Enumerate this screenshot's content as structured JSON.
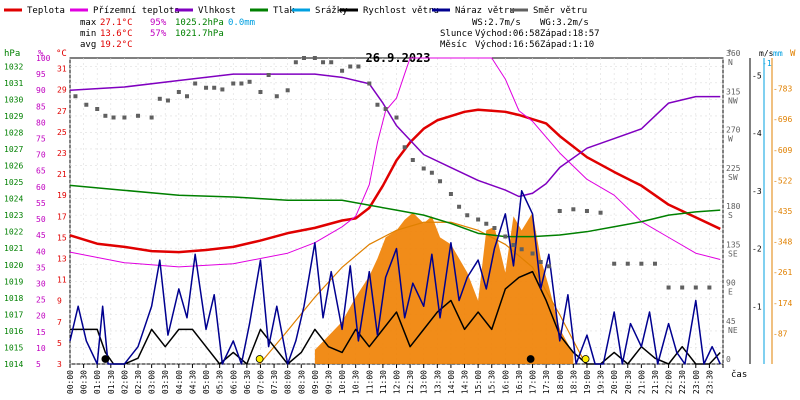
{
  "chart_data": {
    "type": "line",
    "title": "26.9.2023",
    "xlabel": "čas",
    "x_ticks": [
      "00:00",
      "00:30",
      "01:00",
      "01:30",
      "02:00",
      "02:30",
      "03:00",
      "03:30",
      "04:00",
      "04:30",
      "05:00",
      "05:30",
      "06:00",
      "06:30",
      "07:00",
      "07:30",
      "08:00",
      "08:30",
      "09:00",
      "09:30",
      "10:00",
      "10:30",
      "11:00",
      "11:30",
      "12:00",
      "12:30",
      "13:00",
      "13:30",
      "14:00",
      "14:30",
      "15:00",
      "15:30",
      "16:00",
      "16:30",
      "17:00",
      "17:30",
      "18:00",
      "18:30",
      "19:00",
      "19:30",
      "20:00",
      "20:30",
      "21:00",
      "21:30",
      "22:00",
      "22:30",
      "23:00",
      "23:30"
    ],
    "legend": [
      {
        "label": "Teplota",
        "color": "#e00000"
      },
      {
        "label": "Přízemní teplota",
        "color": "#e000e0"
      },
      {
        "label": "Vlhkost",
        "color": "#8000c0"
      },
      {
        "label": "Tlak",
        "color": "#008000"
      },
      {
        "label": "Srážky",
        "color": "#00a0e0"
      },
      {
        "label": "Rychlost větru",
        "color": "#000000"
      },
      {
        "label": "Náraz větru",
        "color": "#000090"
      },
      {
        "label": "Směr větru",
        "color": "#606060"
      }
    ],
    "stats": {
      "max_label": "max",
      "min_label": "min",
      "avg_label": "avg",
      "temp_max": "27.1°C",
      "temp_min": "13.6°C",
      "temp_avg": "19.2°C",
      "hum_max": "95%",
      "hum_min": "57%",
      "press_max": "1025.2hPa",
      "press_min": "1021.7hPa",
      "rain": "0.0mm",
      "ws": "WS:2.7m/s",
      "wg": "WG:3.2m/s",
      "sun_label": "Slunce",
      "sunrise": "Východ:06:58",
      "sunset": "Západ:18:57",
      "moon_label": "Měsíc",
      "moonrise": "Východ:16:56",
      "moonset": "Západ:1:10"
    },
    "axes": {
      "hpa": {
        "unit": "hPa",
        "color": "#008000",
        "ticks": [
          "1032",
          "1031",
          "1030",
          "1029",
          "1028",
          "1027",
          "1026",
          "1025",
          "1024",
          "1023",
          "1022",
          "1021",
          "1020",
          "1019",
          "1018",
          "1017",
          "1016",
          "1015",
          "1014"
        ],
        "range": [
          1014,
          1032.5
        ]
      },
      "pct": {
        "unit": "%",
        "color": "#c000c0",
        "ticks": [
          "100",
          "95",
          "90",
          "85",
          "80",
          "75",
          "70",
          "65",
          "60",
          "55",
          "50",
          "45",
          "40",
          "35",
          "30",
          "25",
          "20",
          "15",
          "10",
          "5"
        ],
        "range": [
          5,
          100
        ]
      },
      "temp": {
        "unit": "°C",
        "color": "#e00000",
        "ticks": [
          "31",
          "29",
          "27",
          "25",
          "23",
          "21",
          "19",
          "17",
          "15",
          "13",
          "11",
          "9",
          "7",
          "5",
          "3"
        ],
        "range": [
          3,
          32
        ]
      },
      "dir": {
        "unit": "°",
        "color": "#606060",
        "ticks": [
          "360",
          "315",
          "270",
          "225",
          "180",
          "135",
          "90",
          "45",
          "0"
        ],
        "labels": [
          "N",
          "NW",
          "W",
          "SW",
          "S",
          "SE",
          "E",
          "NE",
          ""
        ],
        "range": [
          0,
          360
        ]
      },
      "wind": {
        "unit": "m/s",
        "color": "#000000",
        "ticks": [
          "5",
          "4",
          "3",
          "2",
          "1"
        ],
        "range": [
          0,
          5.3
        ]
      },
      "rain": {
        "unit": "mm",
        "color": "#00a0e0",
        "ticks": [
          "1"
        ]
      },
      "solar": {
        "unit": "W",
        "color": "#e08000",
        "ticks": [
          "783",
          "696",
          "609",
          "522",
          "435",
          "348",
          "261",
          "174",
          "87"
        ],
        "range": [
          0,
          870
        ]
      }
    },
    "series": [
      {
        "name": "Teplota",
        "axis": "temp",
        "color": "#e00000",
        "x": [
          0,
          1,
          2,
          3,
          4,
          5,
          6,
          7,
          8,
          9,
          10,
          10.5,
          11,
          11.5,
          12,
          12.5,
          13,
          13.5,
          14,
          14.5,
          15,
          15.5,
          16,
          16.5,
          17,
          17.5,
          18,
          19,
          20,
          21,
          22,
          23,
          23.9
        ],
        "values": [
          15.2,
          14.4,
          14.1,
          13.7,
          13.6,
          13.8,
          14.1,
          14.7,
          15.4,
          15.9,
          16.6,
          16.8,
          17.8,
          19.9,
          22.3,
          24.0,
          25.3,
          26.1,
          26.5,
          26.9,
          27.1,
          27.0,
          26.9,
          26.6,
          26.2,
          25.8,
          24.6,
          22.6,
          21.2,
          19.9,
          18.1,
          16.9,
          15.8
        ]
      },
      {
        "name": "Přízemní teplota",
        "axis": "temp",
        "color": "#e000e0",
        "x": [
          0,
          2,
          4,
          6,
          8,
          9,
          10,
          10.5,
          11,
          11.3,
          11.6,
          12,
          12.3,
          12.5,
          13,
          14,
          15,
          15.5,
          16,
          16.5,
          17,
          18,
          19,
          20,
          21,
          22,
          23,
          23.9
        ],
        "values": [
          13.6,
          12.6,
          12.2,
          12.5,
          13.5,
          14.5,
          16,
          17,
          20,
          24,
          27,
          28.2,
          30.5,
          32,
          32,
          32,
          32,
          32,
          30,
          27,
          26,
          23,
          20.5,
          19,
          16.5,
          15,
          13.5,
          12.9
        ]
      },
      {
        "name": "Vlhkost",
        "axis": "pct",
        "color": "#8000c0",
        "x": [
          0,
          2,
          4,
          6,
          8,
          9,
          10,
          11,
          11.5,
          12,
          13,
          14,
          15,
          16,
          16.5,
          17,
          17.5,
          18,
          19,
          20,
          21,
          22,
          23,
          23.9
        ],
        "values": [
          90,
          91,
          93,
          95,
          95,
          95,
          94,
          92,
          86,
          79,
          70,
          66,
          62,
          59,
          57,
          58,
          61,
          66,
          72,
          75,
          78,
          86,
          88,
          88
        ]
      },
      {
        "name": "Tlak",
        "axis": "hpa",
        "color": "#008000",
        "x": [
          0,
          2,
          4,
          6,
          8,
          10,
          12,
          13,
          14,
          15,
          16,
          17,
          18,
          19,
          20,
          21,
          22,
          23,
          23.9
        ],
        "values": [
          1024.8,
          1024.5,
          1024.2,
          1024.1,
          1023.9,
          1023.9,
          1023.3,
          1023.0,
          1022.5,
          1021.9,
          1021.7,
          1021.7,
          1021.8,
          1022.0,
          1022.3,
          1022.6,
          1023.0,
          1023.2,
          1023.3
        ]
      },
      {
        "name": "Rychlost větru",
        "axis": "wind",
        "color": "#000000",
        "x": [
          0,
          0.5,
          1,
          1.3,
          1.6,
          2,
          2.5,
          3,
          3.5,
          4,
          4.5,
          5,
          5.5,
          6,
          6.5,
          7,
          7.5,
          8,
          8.5,
          9,
          9.5,
          10,
          10.5,
          11,
          11.5,
          12,
          12.5,
          13,
          13.5,
          14,
          14.5,
          15,
          15.5,
          16,
          16.5,
          17,
          17.5,
          18,
          18.5,
          19,
          19.5,
          20,
          20.5,
          21,
          21.5,
          22,
          22.5,
          23,
          23.5,
          23.9
        ],
        "values": [
          0.6,
          0.6,
          0.6,
          0.2,
          0,
          0,
          0.1,
          0.6,
          0.3,
          0.6,
          0.6,
          0.3,
          0,
          0.2,
          0,
          0.6,
          0.3,
          0,
          0.2,
          0.6,
          0.3,
          0.2,
          0.6,
          0.3,
          0.6,
          0.9,
          0.3,
          0.6,
          0.9,
          1.1,
          0.6,
          0.9,
          0.6,
          1.3,
          1.5,
          1.6,
          1.1,
          0.5,
          0.2,
          0,
          0,
          0.2,
          0,
          0.3,
          0.1,
          0,
          0.3,
          0,
          0,
          0.2
        ]
      },
      {
        "name": "Náraz větru",
        "axis": "wind",
        "color": "#000090",
        "x": [
          0,
          0.3,
          0.6,
          1,
          1.2,
          1.4,
          2,
          2.5,
          3,
          3.3,
          3.6,
          4,
          4.3,
          4.6,
          5,
          5.3,
          5.6,
          6,
          6.3,
          6.6,
          7,
          7.3,
          7.6,
          8,
          8.3,
          8.6,
          9,
          9.3,
          9.6,
          10,
          10.3,
          10.6,
          11,
          11.3,
          11.6,
          12,
          12.3,
          12.6,
          13,
          13.3,
          13.6,
          14,
          14.3,
          14.6,
          15,
          15.3,
          15.6,
          16,
          16.3,
          16.6,
          17,
          17.3,
          17.6,
          18,
          18.3,
          18.6,
          19,
          19.3,
          19.6,
          20,
          20.3,
          20.6,
          21,
          21.3,
          21.6,
          22,
          22.3,
          22.6,
          23,
          23.3,
          23.6,
          23.9
        ],
        "values": [
          0.4,
          1,
          0.4,
          0,
          1,
          0,
          0,
          0.3,
          1,
          1.8,
          0.5,
          1.3,
          0.8,
          1.9,
          0.6,
          1.2,
          0,
          0.4,
          0,
          0.7,
          1.8,
          0.3,
          1,
          0,
          0.4,
          1,
          2.1,
          0.8,
          1.6,
          0.6,
          1.7,
          0.4,
          1.6,
          0.5,
          1.5,
          2.0,
          0.8,
          1.4,
          1.0,
          1.9,
          0.8,
          2.1,
          1.1,
          1.5,
          1.8,
          1.3,
          2.0,
          2.6,
          1.7,
          3.0,
          2.6,
          1.3,
          1.9,
          0.4,
          1.2,
          0,
          0.5,
          0,
          0,
          0.9,
          0,
          0.7,
          0.3,
          0.9,
          0,
          0.7,
          0.2,
          0,
          1.1,
          0,
          0.3,
          0
        ]
      },
      {
        "name": "Směr větru",
        "axis": "dir",
        "type": "scatter",
        "color": "#606060",
        "x": [
          0.2,
          0.6,
          1,
          1.3,
          1.6,
          2,
          2.5,
          3,
          3.3,
          3.6,
          4,
          4.3,
          4.6,
          5,
          5.3,
          5.6,
          6,
          6.3,
          6.6,
          7,
          7.3,
          7.6,
          8,
          8.3,
          8.6,
          9,
          9.3,
          9.6,
          10,
          10.3,
          10.6,
          11,
          11.3,
          11.6,
          12,
          12.3,
          12.6,
          13,
          13.3,
          13.6,
          14,
          14.3,
          14.6,
          15,
          15.3,
          15.6,
          16,
          16.3,
          16.6,
          17,
          17.3,
          17.6,
          18,
          18.5,
          19,
          19.5,
          20,
          20.5,
          21,
          21.5,
          22,
          22.5,
          23,
          23.5
        ],
        "values": [
          315,
          305,
          300,
          292,
          290,
          290,
          292,
          290,
          312,
          310,
          320,
          315,
          330,
          325,
          325,
          323,
          330,
          330,
          332,
          320,
          340,
          315,
          322,
          355,
          360,
          360,
          355,
          355,
          345,
          350,
          350,
          330,
          305,
          300,
          290,
          255,
          240,
          230,
          225,
          215,
          200,
          185,
          175,
          170,
          165,
          160,
          150,
          140,
          135,
          130,
          120,
          115,
          180,
          182,
          180,
          178,
          118,
          118,
          118,
          118,
          90,
          90,
          90,
          90
        ]
      }
    ],
    "rain_bars": {
      "axis": "rain",
      "x": [],
      "values": []
    },
    "solar": {
      "name": "Solar radiation",
      "axis": "solar",
      "color": "#f08000",
      "x": [
        9,
        9.5,
        10,
        10.5,
        11,
        11.3,
        11.6,
        12,
        12.3,
        12.6,
        13,
        13.3,
        13.6,
        14,
        14.3,
        14.6,
        15,
        15.3,
        15.6,
        16,
        16.3,
        16.6,
        17,
        17.3,
        17.6,
        18,
        18.5
      ],
      "values": [
        40,
        80,
        120,
        190,
        250,
        300,
        360,
        380,
        410,
        430,
        400,
        420,
        360,
        340,
        300,
        260,
        180,
        380,
        390,
        260,
        420,
        380,
        430,
        300,
        220,
        100,
        30
      ]
    },
    "solar_theory": {
      "axis": "solar",
      "color": "#e08000",
      "x": [
        6.97,
        8,
        9,
        10,
        11,
        12,
        13,
        14,
        15,
        16,
        17,
        18,
        18.95
      ],
      "values": [
        0,
        95,
        190,
        275,
        340,
        380,
        403,
        403,
        380,
        340,
        275,
        140,
        0
      ]
    },
    "markers": [
      {
        "x": 1.3,
        "color": "#000000"
      },
      {
        "x": 6.97,
        "color": "#ffee00"
      },
      {
        "x": 16.93,
        "color": "#000000"
      },
      {
        "x": 18.95,
        "color": "#ffee00"
      }
    ]
  }
}
